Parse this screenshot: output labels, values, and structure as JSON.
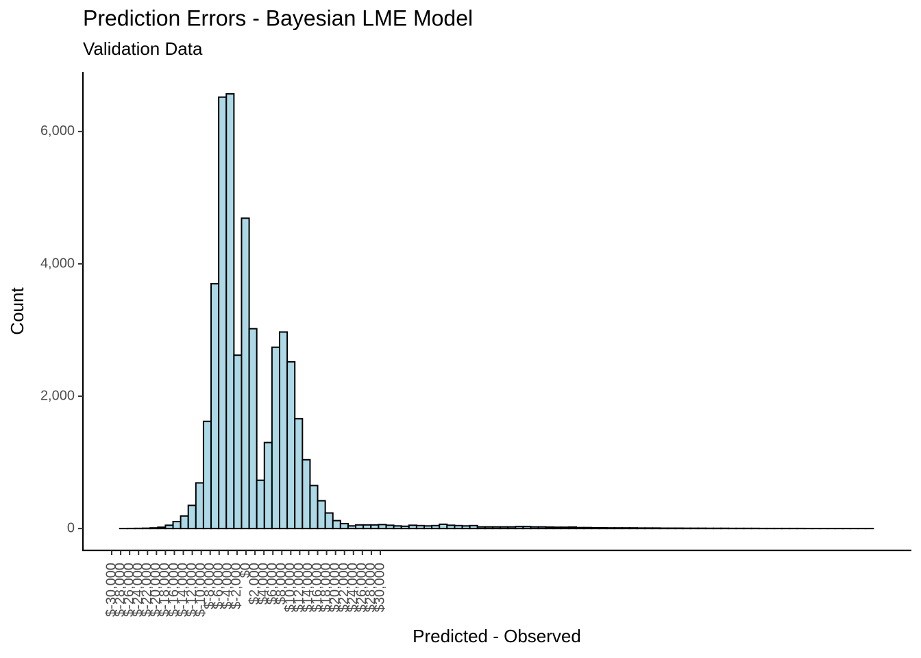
{
  "chart_data": {
    "type": "histogram",
    "title": "Prediction Errors - Bayesian LME Model",
    "subtitle": "Validation Data",
    "xlabel": "Predicted - Observed",
    "ylabel": "Count",
    "bins": [
      -28200,
      -26500,
      -24800,
      -23100,
      -21400,
      -19700,
      -18000,
      -16300,
      -14600,
      -12900,
      -11200,
      -9500,
      -7800,
      -6100,
      -4400,
      -2700,
      -1000,
      700,
      2400,
      4100,
      5800,
      7500,
      9200,
      10900,
      12600,
      14300,
      16000,
      17700,
      19400,
      21100,
      22800,
      24500,
      26200,
      27900,
      29600,
      31300,
      33000,
      34700,
      36400,
      38100,
      39800,
      41500,
      43200,
      44900,
      46600,
      48300,
      50000,
      51700,
      53400,
      55100,
      56800,
      58500,
      60200,
      61900,
      63600,
      65300,
      67000,
      68700,
      70400,
      72100,
      73800,
      75500,
      77200,
      78900,
      80600,
      82300,
      84000,
      85700,
      87400,
      89100,
      90800,
      92500,
      94200,
      95900,
      97600,
      99300,
      101000,
      102700,
      104400,
      106100,
      107800,
      109500,
      111200,
      112900,
      114600,
      116300,
      118000,
      119700,
      121400,
      123100,
      124800,
      126500,
      128200,
      129900,
      131600,
      133300,
      135000,
      136700,
      138400,
      140100
    ],
    "counts": [
      1,
      2,
      3,
      5,
      10,
      20,
      50,
      105,
      190,
      350,
      690,
      1620,
      3700,
      6520,
      6570,
      2620,
      4690,
      3020,
      730,
      1300,
      2740,
      2970,
      2520,
      1660,
      1040,
      650,
      420,
      235,
      120,
      75,
      40,
      55,
      55,
      55,
      60,
      50,
      40,
      35,
      50,
      45,
      40,
      45,
      65,
      50,
      45,
      40,
      45,
      25,
      25,
      25,
      25,
      25,
      30,
      30,
      25,
      25,
      22,
      20,
      20,
      22,
      15,
      15,
      12,
      12,
      10,
      10,
      10,
      10,
      8,
      8,
      8,
      6,
      6,
      6,
      5,
      5,
      5,
      4,
      4,
      4,
      3,
      3,
      3,
      3,
      2,
      2,
      2,
      2,
      2,
      2,
      1,
      1,
      1,
      1,
      1,
      1,
      1,
      1,
      1
    ],
    "color": "#add8e6",
    "edgecolor": "#000000",
    "xlim": [
      -36430,
      148630
    ],
    "ylim": [
      -330,
      6900
    ],
    "xticks": [
      {
        "value": -30000,
        "label": "$-30,000"
      },
      {
        "value": -28000,
        "label": "$-28,000"
      },
      {
        "value": -26000,
        "label": "$-26,000"
      },
      {
        "value": -24000,
        "label": "$-24,000"
      },
      {
        "value": -22000,
        "label": "$-22,000"
      },
      {
        "value": -20000,
        "label": "$-20,000"
      },
      {
        "value": -18000,
        "label": "$-18,000"
      },
      {
        "value": -16000,
        "label": "$-16,000"
      },
      {
        "value": -14000,
        "label": "$-14,000"
      },
      {
        "value": -12000,
        "label": "$-12,000"
      },
      {
        "value": -10000,
        "label": "$-10,000"
      },
      {
        "value": -8000,
        "label": "$-8,000"
      },
      {
        "value": -6000,
        "label": "$-6,000"
      },
      {
        "value": -4000,
        "label": "$-4,000"
      },
      {
        "value": -2000,
        "label": "$-2,000"
      },
      {
        "value": 0,
        "label": "$0"
      },
      {
        "value": 2000,
        "label": "$2,000"
      },
      {
        "value": 4000,
        "label": "$4,000"
      },
      {
        "value": 6000,
        "label": "$6,000"
      },
      {
        "value": 8000,
        "label": "$8,000"
      },
      {
        "value": 10000,
        "label": "$10,000"
      },
      {
        "value": 12000,
        "label": "$12,000"
      },
      {
        "value": 14000,
        "label": "$14,000"
      },
      {
        "value": 16000,
        "label": "$16,000"
      },
      {
        "value": 18000,
        "label": "$18,000"
      },
      {
        "value": 20000,
        "label": "$20,000"
      },
      {
        "value": 22000,
        "label": "$22,000"
      },
      {
        "value": 24000,
        "label": "$24,000"
      },
      {
        "value": 26000,
        "label": "$26,000"
      },
      {
        "value": 28000,
        "label": "$28,000"
      },
      {
        "value": 30000,
        "label": "$30,000"
      }
    ],
    "yticks": [
      0,
      {
        "value": 2000,
        "label": "2,000"
      },
      {
        "value": 4000,
        "label": "4,000"
      },
      {
        "value": 6000,
        "label": "6,000"
      }
    ],
    "grid": false
  }
}
